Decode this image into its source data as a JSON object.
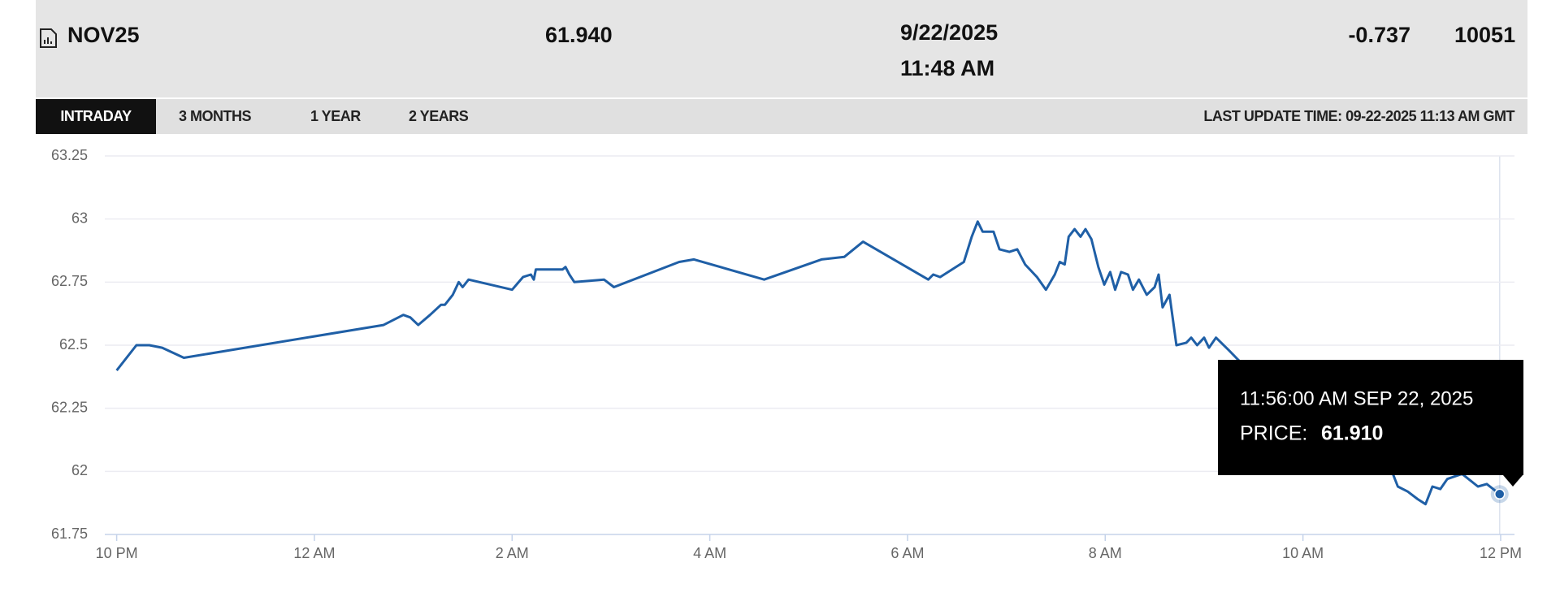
{
  "header": {
    "symbol": "NOV25",
    "last": "61.940",
    "date": "9/22/2025",
    "time": "11:48 AM",
    "change": "-0.737",
    "volume": "10051"
  },
  "tabs": [
    "INTRADAY",
    "3 MONTHS",
    "1 YEAR",
    "2 YEARS"
  ],
  "last_update": "LAST UPDATE TIME: 09-22-2025 11:13 AM GMT",
  "tooltip": {
    "time": "11:56:00 AM SEP 22, 2025",
    "label": "PRICE:",
    "value": "61.910"
  },
  "chart_data": {
    "type": "line",
    "color": "#1f5fa6",
    "grid": true,
    "x": [
      22.0,
      22.2,
      22.33,
      22.46,
      22.68,
      24.7,
      24.9,
      24.97,
      25.05,
      25.17,
      25.28,
      25.32,
      25.4,
      25.46,
      25.5,
      25.56,
      26.0,
      26.11,
      26.19,
      26.22,
      26.24,
      26.51,
      26.54,
      26.58,
      26.63,
      26.93,
      27.03,
      27.69,
      27.84,
      28.55,
      29.13,
      29.36,
      29.55,
      30.21,
      30.26,
      30.33,
      30.57,
      30.65,
      30.71,
      30.76,
      30.87,
      30.93,
      31.03,
      31.11,
      31.19,
      31.31,
      31.4,
      31.49,
      31.54,
      31.59,
      31.63,
      31.69,
      31.75,
      31.8,
      31.86,
      31.93,
      31.99,
      32.05,
      32.1,
      32.16,
      32.23,
      32.28,
      32.34,
      32.42,
      32.5,
      32.54,
      32.58,
      32.65,
      32.72,
      32.82,
      32.87,
      32.93,
      33.0,
      33.05,
      33.12,
      33.25,
      33.35,
      34.89,
      34.96,
      35.06,
      35.16,
      35.24,
      35.31,
      35.39,
      35.46,
      35.61,
      35.77,
      35.86,
      35.99
    ],
    "values": [
      62.4,
      62.5,
      62.5,
      62.49,
      62.45,
      62.58,
      62.62,
      62.61,
      62.58,
      62.62,
      62.66,
      62.66,
      62.7,
      62.75,
      62.73,
      62.76,
      62.72,
      62.77,
      62.78,
      62.76,
      62.8,
      62.8,
      62.81,
      62.78,
      62.75,
      62.76,
      62.73,
      62.83,
      62.84,
      62.76,
      62.84,
      62.85,
      62.91,
      62.76,
      62.78,
      62.77,
      62.83,
      62.93,
      62.99,
      62.95,
      62.95,
      62.88,
      62.87,
      62.88,
      62.82,
      62.77,
      62.72,
      62.78,
      62.83,
      62.82,
      62.93,
      62.96,
      62.93,
      62.96,
      62.92,
      62.81,
      62.74,
      62.79,
      62.72,
      62.79,
      62.78,
      62.72,
      62.76,
      62.7,
      62.73,
      62.78,
      62.65,
      62.7,
      62.5,
      62.51,
      62.53,
      62.5,
      62.53,
      62.49,
      62.53,
      62.48,
      62.44,
      62.01,
      61.94,
      61.92,
      61.89,
      61.87,
      61.94,
      61.93,
      61.97,
      61.99,
      61.94,
      61.95,
      61.91
    ],
    "xlim": [
      21.88,
      36.14
    ],
    "ylim": [
      61.75,
      63.25
    ],
    "yticks": [
      61.75,
      62,
      62.25,
      62.5,
      62.75,
      63,
      63.25
    ],
    "xticks": [
      {
        "value": 22,
        "label": "10 PM"
      },
      {
        "value": 24,
        "label": "12 AM"
      },
      {
        "value": 26,
        "label": "2 AM"
      },
      {
        "value": 28,
        "label": "4 AM"
      },
      {
        "value": 30,
        "label": "6 AM"
      },
      {
        "value": 32,
        "label": "8 AM"
      },
      {
        "value": 34,
        "label": "10 AM"
      },
      {
        "value": 36,
        "label": "12 PM"
      }
    ]
  }
}
